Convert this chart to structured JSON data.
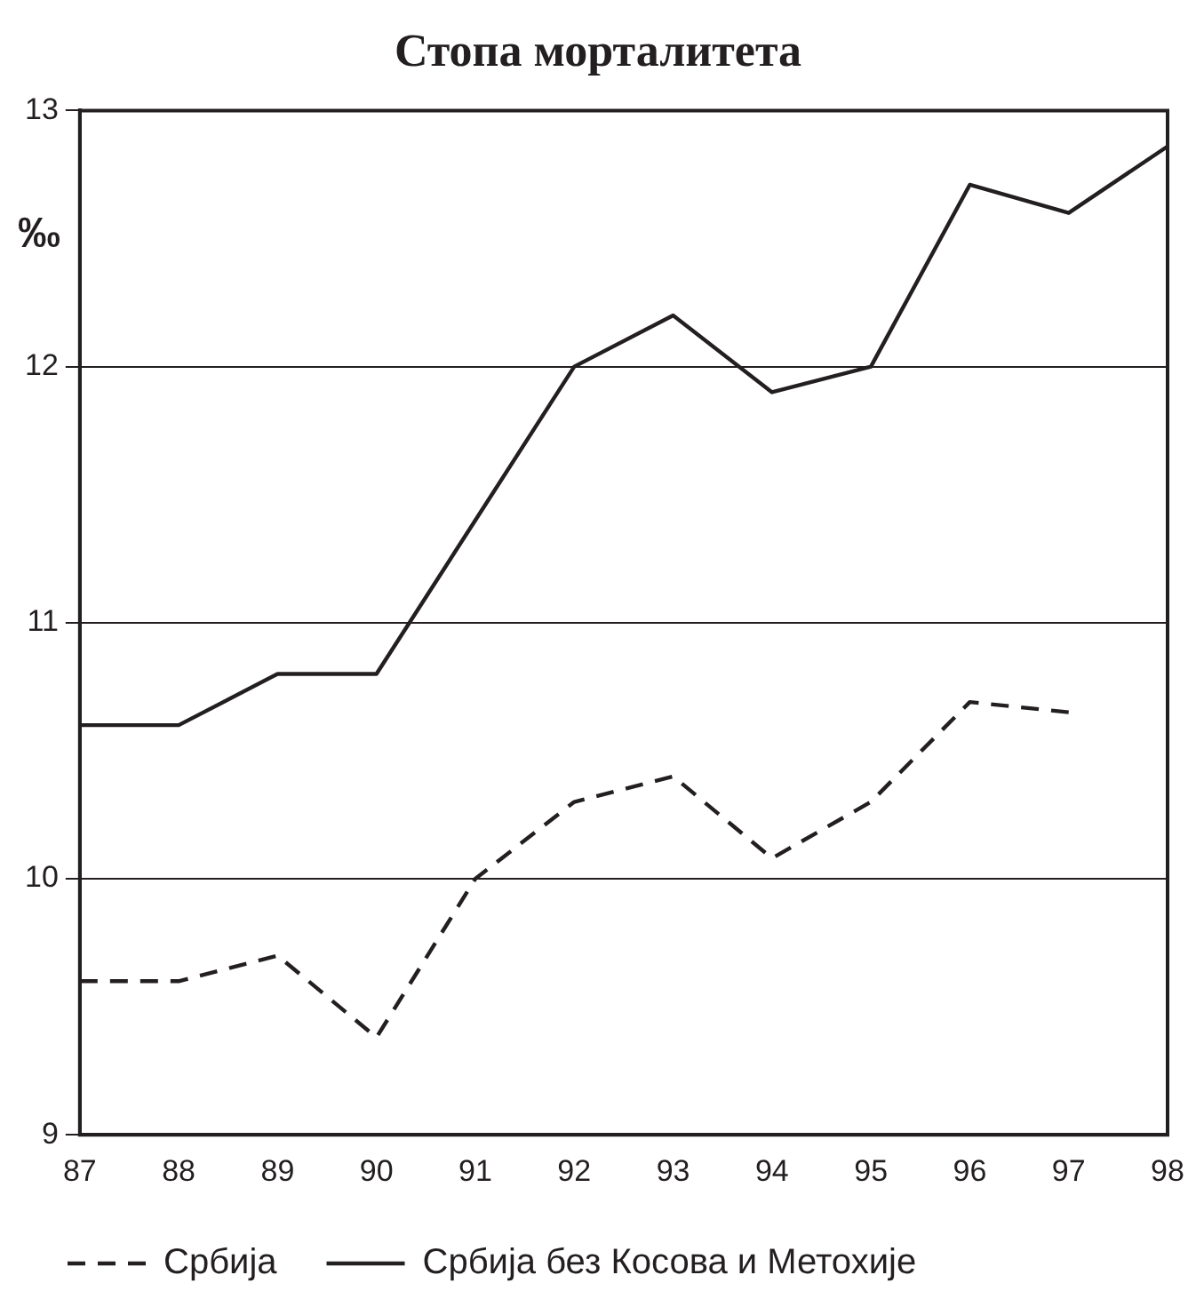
{
  "chart_data": {
    "type": "line",
    "title": "Стопа морталитета",
    "ylabel": "‰",
    "categories": [
      "87",
      "88",
      "89",
      "90",
      "91",
      "92",
      "93",
      "94",
      "95",
      "96",
      "97",
      "98"
    ],
    "series": [
      {
        "name": "Србија",
        "color": "#231f20",
        "line_style": "dashed",
        "values": [
          9.6,
          9.6,
          9.7,
          9.38,
          10.0,
          10.3,
          10.4,
          10.08,
          10.3,
          10.69,
          10.65,
          null
        ]
      },
      {
        "name": "Србија без Косова и Метохије",
        "color": "#231f20",
        "line_style": "solid",
        "values": [
          10.6,
          10.6,
          10.8,
          10.8,
          11.4,
          12.0,
          12.2,
          11.9,
          12.0,
          12.71,
          12.6,
          12.86
        ]
      }
    ],
    "ylim": [
      9,
      13
    ],
    "yticks": [
      9,
      10,
      11,
      12,
      13
    ],
    "grid": "y",
    "legend": "bottom",
    "marker": "none"
  }
}
